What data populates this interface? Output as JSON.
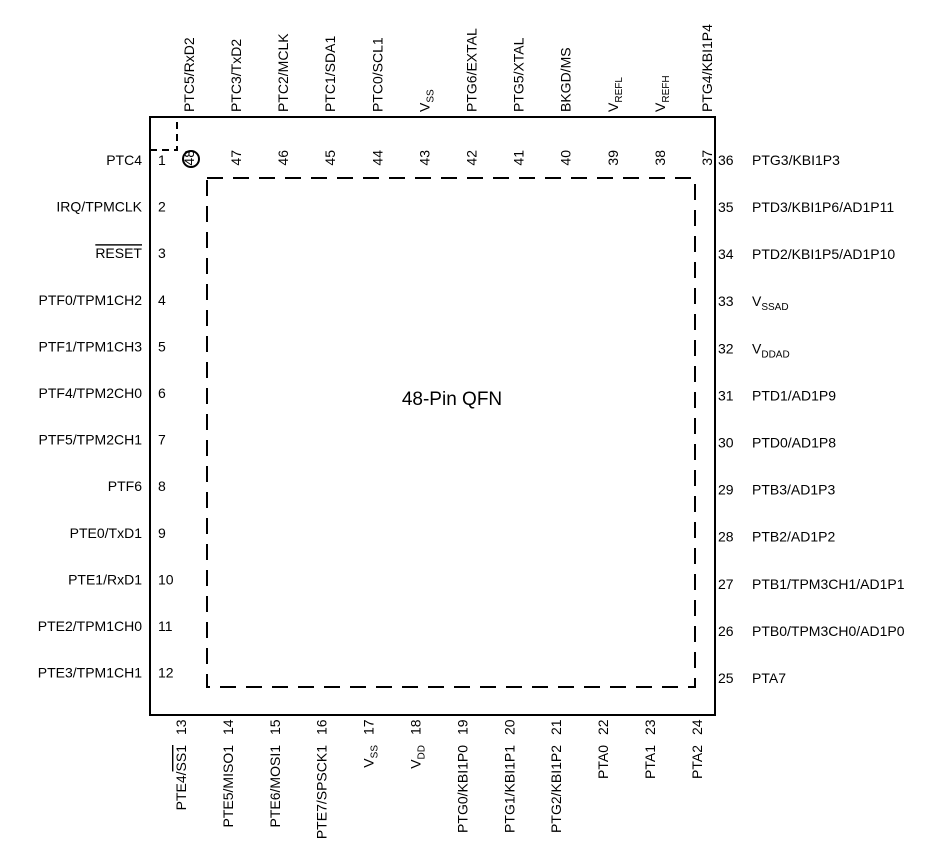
{
  "package_label": "48-Pin QFN",
  "pins_left": [
    {
      "num": "1",
      "name": "PTC4"
    },
    {
      "num": "2",
      "name": "IRQ/TPMCLK"
    },
    {
      "num": "3",
      "name": "RESET",
      "overline": true
    },
    {
      "num": "4",
      "name": "PTF0/TPM1CH2"
    },
    {
      "num": "5",
      "name": "PTF1/TPM1CH3"
    },
    {
      "num": "6",
      "name": "PTF4/TPM2CH0"
    },
    {
      "num": "7",
      "name": "PTF5/TPM2CH1"
    },
    {
      "num": "8",
      "name": "PTF6"
    },
    {
      "num": "9",
      "name": "PTE0/TxD1"
    },
    {
      "num": "10",
      "name": "PTE1/RxD1"
    },
    {
      "num": "11",
      "name": "PTE2/TPM1CH0"
    },
    {
      "num": "12",
      "name": "PTE3/TPM1CH1"
    }
  ],
  "pins_bottom": [
    {
      "num": "13",
      "name": "PTE4/",
      "name_overline": "SS1"
    },
    {
      "num": "14",
      "name": "PTE5/MISO1"
    },
    {
      "num": "15",
      "name": "PTE6/MOSI1"
    },
    {
      "num": "16",
      "name": "PTE7/SPSCK1"
    },
    {
      "num": "17",
      "name": "V",
      "sub": "SS"
    },
    {
      "num": "18",
      "name": "V",
      "sub": "DD"
    },
    {
      "num": "19",
      "name": "PTG0/KBI1P0"
    },
    {
      "num": "20",
      "name": "PTG1/KBI1P1"
    },
    {
      "num": "21",
      "name": "PTG2/KBI1P2"
    },
    {
      "num": "22",
      "name": "PTA0"
    },
    {
      "num": "23",
      "name": "PTA1"
    },
    {
      "num": "24",
      "name": "PTA2"
    }
  ],
  "pins_right": [
    {
      "num": "25",
      "name": "PTA7"
    },
    {
      "num": "26",
      "name": "PTB0/TPM3CH0/AD1P0"
    },
    {
      "num": "27",
      "name": "PTB1/TPM3CH1/AD1P1"
    },
    {
      "num": "28",
      "name": "PTB2/AD1P2"
    },
    {
      "num": "29",
      "name": "PTB3/AD1P3"
    },
    {
      "num": "30",
      "name": "PTD0/AD1P8"
    },
    {
      "num": "31",
      "name": "PTD1/AD1P9"
    },
    {
      "num": "32",
      "name": "V",
      "sub": "DDAD"
    },
    {
      "num": "33",
      "name": "V",
      "sub": "SSAD"
    },
    {
      "num": "34",
      "name": "PTD2/KBI1P5/AD1P10"
    },
    {
      "num": "35",
      "name": "PTD3/KBI1P6/AD1P11"
    },
    {
      "num": "36",
      "name": "PTG3/KBI1P3"
    }
  ],
  "pins_top": [
    {
      "num": "37",
      "name": "PTG4/KBI1P4"
    },
    {
      "num": "38",
      "name": "V",
      "sub": "REFH"
    },
    {
      "num": "39",
      "name": "V",
      "sub": "REFL"
    },
    {
      "num": "40",
      "name": "BKGD/MS"
    },
    {
      "num": "41",
      "name": "PTG5/XTAL"
    },
    {
      "num": "42",
      "name": "PTG6/EXTAL"
    },
    {
      "num": "43",
      "name": "V",
      "sub": "SS"
    },
    {
      "num": "44",
      "name": "PTC0/SCL1"
    },
    {
      "num": "45",
      "name": "PTC1/SDA1"
    },
    {
      "num": "46",
      "name": "PTC2/MCLK"
    },
    {
      "num": "47",
      "name": "PTC3/TxD2"
    },
    {
      "num": "48",
      "name": "PTC5/RxD2"
    }
  ]
}
